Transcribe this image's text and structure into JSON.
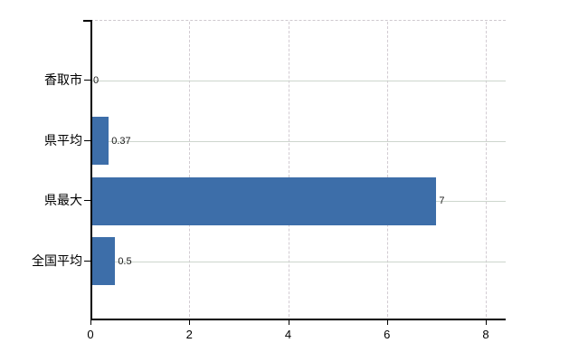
{
  "chart_data": {
    "type": "bar",
    "orientation": "horizontal",
    "title": "",
    "categories": [
      "香取市",
      "県平均",
      "県最大",
      "全国平均"
    ],
    "values": [
      0,
      0.37,
      7,
      0.5
    ],
    "value_labels": [
      "0",
      "0.37",
      "7",
      "0.5"
    ],
    "x_ticks": [
      0,
      2,
      4,
      6,
      8
    ],
    "x_tick_labels": [
      "0",
      "2",
      "4",
      "6",
      "8"
    ],
    "xlim": [
      0,
      8.4
    ],
    "grid": true,
    "legend": false,
    "colors": {
      "bar": "#3d6ea9",
      "axis": "#000000",
      "grid_horizontal": "#cdd6cd",
      "grid_vertical": "#d2cbd2",
      "plot_top_border": "#cfc9cf",
      "value_label": "#1a1a1a",
      "tick_label": "#000000",
      "background": "#ffffff"
    }
  }
}
